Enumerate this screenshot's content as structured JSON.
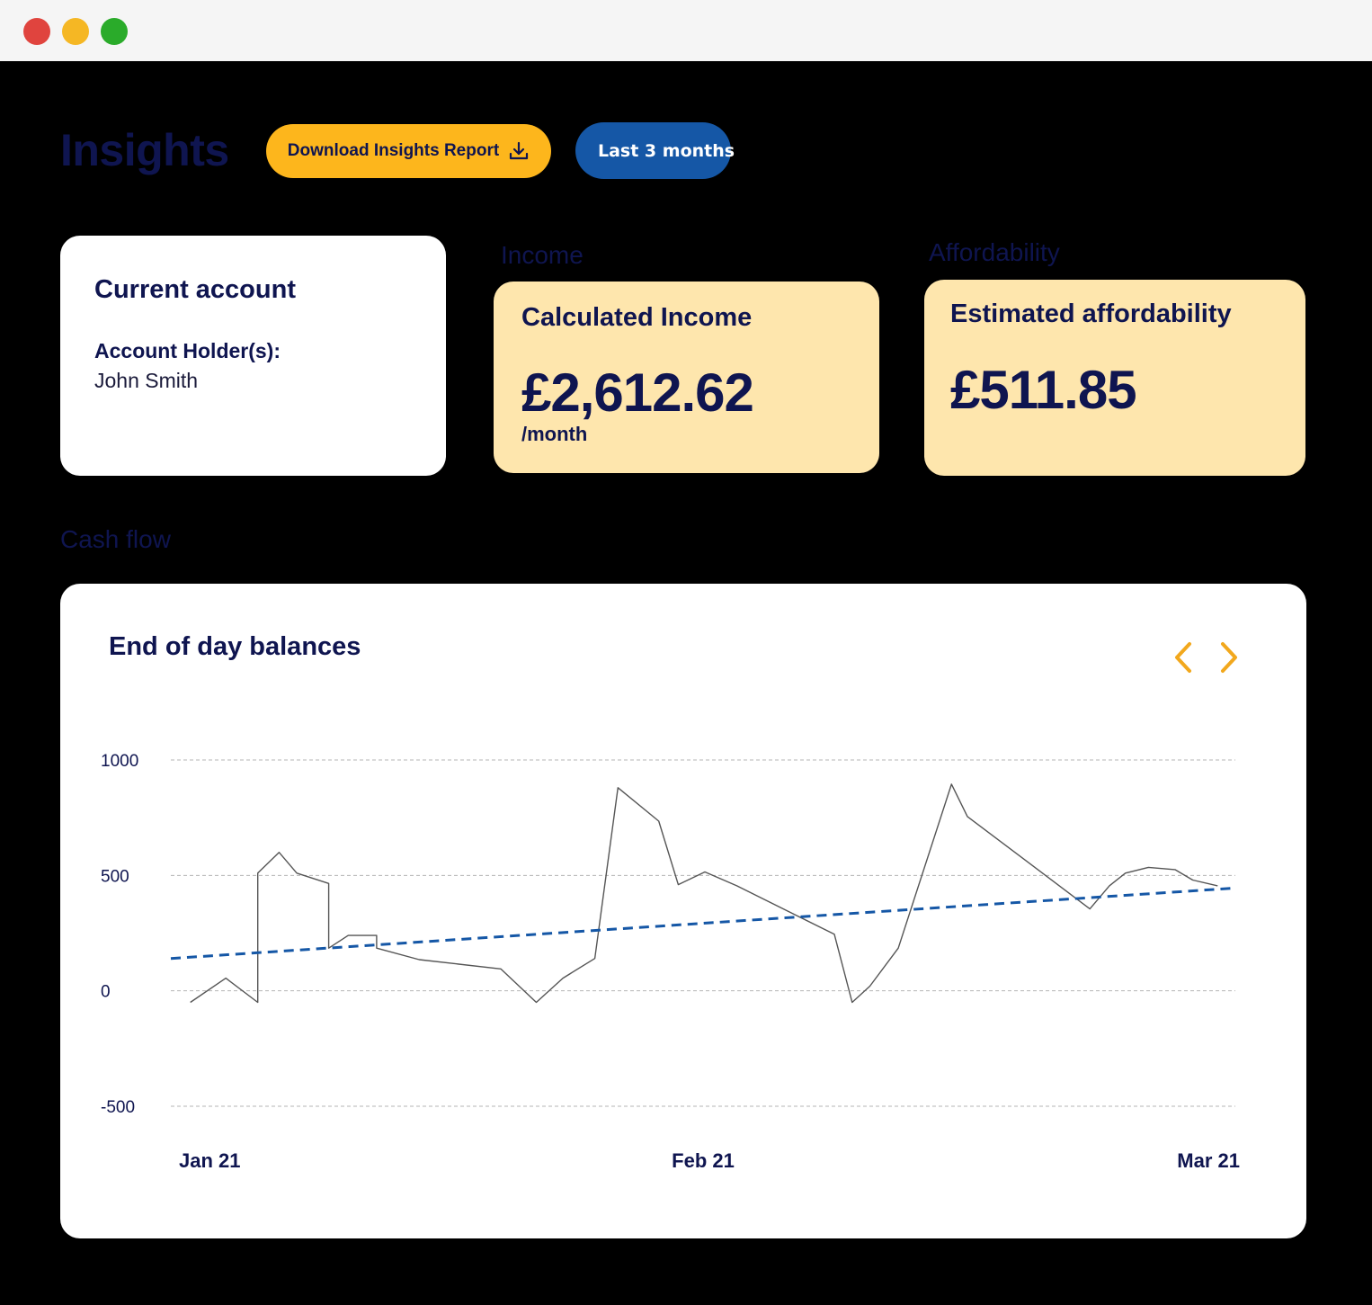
{
  "window": {
    "controls": [
      {
        "name": "close",
        "color": "#e0443e"
      },
      {
        "name": "minimize",
        "color": "#f5b724"
      },
      {
        "name": "maximize",
        "color": "#2aab2a"
      }
    ]
  },
  "header": {
    "title": "Insights",
    "download_button": {
      "label": "Download Insights Report",
      "icon": "download-icon",
      "bg": "#fdb61c",
      "color": "#0f1550"
    },
    "period_button": {
      "label": "Last 3 months",
      "bg": "#1557a6"
    }
  },
  "account_card": {
    "title": "Current account",
    "holder_label": "Account Holder(s):",
    "holder_value": "John Smith"
  },
  "income": {
    "section_label": "Income",
    "card_title": "Calculated Income",
    "amount": "£2,612.62",
    "period": "/month",
    "bg": "#fee6ad"
  },
  "affordability": {
    "section_label": "Affordability",
    "card_title": "Estimated affordability",
    "amount": "£511.85",
    "bg": "#fee6ad"
  },
  "cashflow": {
    "section_label": "Cash flow",
    "nav": {
      "prev_icon": "chevron-left-icon",
      "next_icon": "chevron-right-icon",
      "color": "#f2a81d"
    }
  },
  "chart_data": {
    "type": "line",
    "title": "End of day balances",
    "ylim": [
      -500,
      1000
    ],
    "yticks": [
      1000,
      500,
      0,
      -500
    ],
    "ytick_labels": [
      "1000",
      "500",
      "0",
      "-500"
    ],
    "xlim": [
      0,
      60
    ],
    "xtick_positions": [
      1,
      30,
      58
    ],
    "xtick_labels": [
      "Jan 21",
      "Feb 21",
      "Mar 21"
    ],
    "grid": true,
    "series": [
      {
        "style": "solid",
        "color": "#555555",
        "x": [
          1.1,
          3.1,
          4.9,
          4.9,
          6.1,
          7.1,
          8.9,
          8.9,
          10.0,
          11.6,
          11.6,
          14.0,
          18.6,
          20.6,
          22.1,
          23.9,
          25.2,
          27.5,
          28.6,
          30.1,
          31.9,
          37.4,
          38.4,
          39.4,
          41.0,
          44.0,
          44.9,
          51.8,
          52.9,
          53.8,
          55.1,
          56.6,
          57.6,
          59.0
        ],
        "y": [
          -50,
          55,
          -50,
          510,
          600,
          510,
          465,
          185,
          240,
          240,
          185,
          135,
          95,
          -50,
          55,
          140,
          880,
          735,
          460,
          515,
          455,
          245,
          -50,
          20,
          185,
          895,
          755,
          355,
          455,
          510,
          535,
          525,
          480,
          455
        ]
      },
      {
        "style": "dashed",
        "color": "#1557a6",
        "x": [
          0,
          60
        ],
        "y": [
          140,
          445
        ]
      }
    ]
  }
}
